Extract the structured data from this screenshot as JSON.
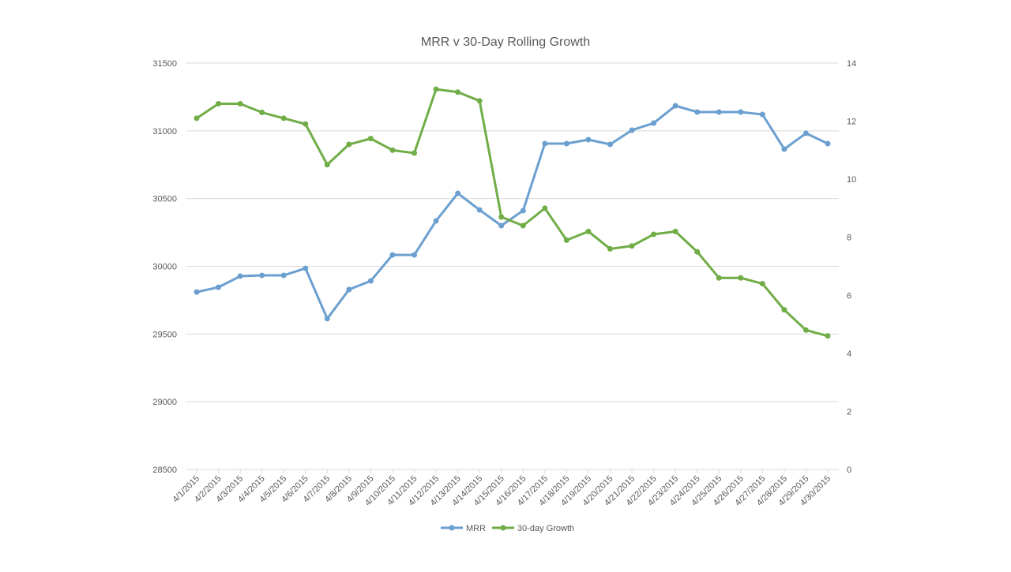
{
  "chart_data": {
    "type": "line",
    "title": "MRR v 30-Day Rolling Growth",
    "categories": [
      "4/1/2015",
      "4/2/2015",
      "4/3/2015",
      "4/4/2015",
      "4/5/2015",
      "4/6/2015",
      "4/7/2015",
      "4/8/2015",
      "4/9/2015",
      "4/10/2015",
      "4/11/2015",
      "4/12/2015",
      "4/13/2015",
      "4/14/2015",
      "4/15/2015",
      "4/16/2015",
      "4/17/2015",
      "4/18/2015",
      "4/19/2015",
      "4/20/2015",
      "4/21/2015",
      "4/22/2015",
      "4/23/2015",
      "4/24/2015",
      "4/25/2015",
      "4/26/2015",
      "4/27/2015",
      "4/28/2015",
      "4/29/2015",
      "4/30/2015"
    ],
    "series": [
      {
        "name": "MRR",
        "axis": "left",
        "color": "#6a9fd0",
        "values": [
          29810,
          29845,
          29927,
          29933,
          29933,
          29985,
          29613,
          29828,
          29892,
          30084,
          30084,
          30335,
          30539,
          30416,
          30300,
          30411,
          30906,
          30906,
          30935,
          30900,
          31005,
          31057,
          31185,
          31139,
          31139,
          31139,
          31121,
          30865,
          30982,
          30906
        ]
      },
      {
        "name": "30-day Growth",
        "axis": "right",
        "color": "#70ad47",
        "values": [
          12.1,
          12.6,
          12.6,
          12.3,
          12.1,
          11.9,
          10.5,
          11.2,
          11.4,
          11.0,
          10.9,
          13.1,
          13.0,
          12.7,
          8.7,
          8.4,
          9.0,
          7.9,
          8.2,
          7.6,
          7.7,
          8.1,
          8.2,
          7.5,
          6.6,
          6.6,
          6.4,
          5.5,
          4.8,
          4.6
        ]
      }
    ],
    "y_left": {
      "range": [
        28500,
        31500
      ],
      "ticks": [
        "28500",
        "29000",
        "29500",
        "30000",
        "30500",
        "31000",
        "31500"
      ]
    },
    "y_right": {
      "range": [
        0,
        14
      ],
      "ticks": [
        "0",
        "2",
        "4",
        "6",
        "8",
        "10",
        "12",
        "14"
      ]
    },
    "grid": true,
    "legend": "bottom"
  }
}
